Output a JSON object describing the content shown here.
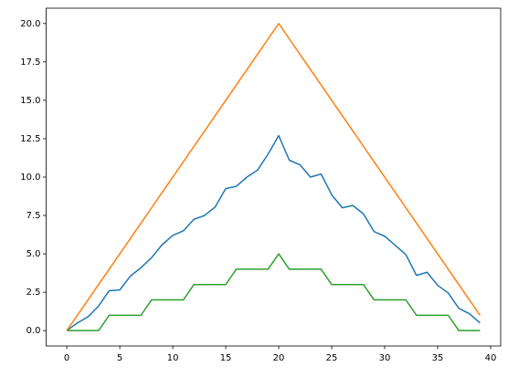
{
  "chart_data": {
    "type": "line",
    "x": [
      0,
      1,
      2,
      3,
      4,
      5,
      6,
      7,
      8,
      9,
      10,
      11,
      12,
      13,
      14,
      15,
      16,
      17,
      18,
      19,
      20,
      21,
      22,
      23,
      24,
      25,
      26,
      27,
      28,
      29,
      30,
      31,
      32,
      33,
      34,
      35,
      36,
      37,
      38,
      39
    ],
    "series": [
      {
        "color": "#1f77b4",
        "values": [
          0,
          0.5,
          0.9,
          1.6,
          2.6,
          2.65,
          3.55,
          4.1,
          4.75,
          5.6,
          6.2,
          6.5,
          7.25,
          7.5,
          8.05,
          9.25,
          9.4,
          10.0,
          10.45,
          11.5,
          12.7,
          11.1,
          10.8,
          10.0,
          10.2,
          8.85,
          8.0,
          8.15,
          7.6,
          6.45,
          6.15,
          5.55,
          4.95,
          3.6,
          3.8,
          2.95,
          2.45,
          1.45,
          1.1,
          0.5
        ]
      },
      {
        "color": "#ff7f0e",
        "values": [
          0,
          1,
          2,
          3,
          4,
          5,
          6,
          7,
          8,
          9,
          10,
          11,
          12,
          13,
          14,
          15,
          16,
          17,
          18,
          19,
          20,
          19,
          18,
          17,
          16,
          15,
          14,
          13,
          12,
          11,
          10,
          9,
          8,
          7,
          6,
          5,
          4,
          3,
          2,
          1
        ]
      },
      {
        "color": "#2ca02c",
        "values": [
          0,
          0,
          0,
          0,
          1,
          1,
          1,
          1,
          2,
          2,
          2,
          2,
          3,
          3,
          3,
          3,
          4,
          4,
          4,
          4,
          5,
          4,
          4,
          4,
          4,
          3,
          3,
          3,
          3,
          2,
          2,
          2,
          2,
          1,
          1,
          1,
          1,
          0,
          0,
          0
        ]
      }
    ],
    "xlim": [
      -1.95,
      40.95
    ],
    "xticks": [
      0,
      5,
      10,
      15,
      20,
      25,
      30,
      35,
      40
    ],
    "ylim": [
      -1,
      21
    ],
    "yticks": [
      {
        "value": 0,
        "label": "0.0"
      },
      {
        "value": 2.5,
        "label": "2.5"
      },
      {
        "value": 5,
        "label": "5.0"
      },
      {
        "value": 7.5,
        "label": "7.5"
      },
      {
        "value": 10,
        "label": "10.0"
      },
      {
        "value": 12.5,
        "label": "12.5"
      },
      {
        "value": 15,
        "label": "15.0"
      },
      {
        "value": 17.5,
        "label": "17.5"
      },
      {
        "value": 20,
        "label": "20.0"
      }
    ]
  }
}
